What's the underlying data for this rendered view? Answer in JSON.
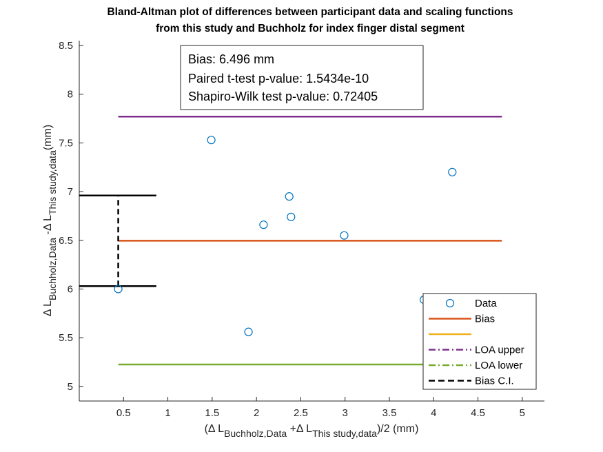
{
  "chart_data": {
    "type": "scatter",
    "title_lines": [
      "Bland-Altman plot of differences between participant data and scaling functions",
      "from this study and Buchholz for index finger distal segment"
    ],
    "xlabel": {
      "open": "(Δ L",
      "sub1": "Buchholz,Data",
      "mid": " +Δ L",
      "sub2": "This study,data",
      "close": ")/2 (mm)"
    },
    "ylabel": {
      "a": "Δ L",
      "sub1": "Buchholz,Data",
      "b": " -Δ L",
      "sub2": "This study,data",
      "c": "(mm)"
    },
    "xlim": [
      0,
      5.25
    ],
    "ylim": [
      4.85,
      8.55
    ],
    "xticks": [
      0.5,
      1,
      1.5,
      2,
      2.5,
      3,
      3.5,
      4,
      4.5,
      5
    ],
    "xtick_labels": [
      "0.5",
      "1",
      "1.5",
      "2",
      "2.5",
      "3",
      "3.5",
      "4",
      "4.5",
      "5"
    ],
    "yticks": [
      5,
      5.5,
      6,
      6.5,
      7,
      7.5,
      8,
      8.5
    ],
    "ytick_labels": [
      "5",
      "5.5",
      "6",
      "6.5",
      "7",
      "7.5",
      "8",
      "8.5"
    ],
    "points": [
      {
        "x": 0.44,
        "y": 6.0
      },
      {
        "x": 1.49,
        "y": 7.53
      },
      {
        "x": 1.91,
        "y": 5.56
      },
      {
        "x": 2.08,
        "y": 6.66
      },
      {
        "x": 2.37,
        "y": 6.95
      },
      {
        "x": 2.39,
        "y": 6.74
      },
      {
        "x": 2.99,
        "y": 6.55
      },
      {
        "x": 3.89,
        "y": 5.89
      },
      {
        "x": 4.21,
        "y": 7.2
      },
      {
        "x": 4.77,
        "y": 5.84
      }
    ],
    "lines": {
      "bias": {
        "y": 6.496,
        "x": [
          0.44,
          4.77
        ],
        "color": "#D95319"
      },
      "loa_upper": {
        "y": 7.77,
        "x": [
          0.44,
          4.77
        ],
        "color": "#7E2F8E"
      },
      "loa_lower": {
        "y": 5.225,
        "x": [
          0.44,
          4.77
        ],
        "color": "#77AC30"
      },
      "bias_ci": {
        "y": [
          6.03,
          6.96
        ],
        "x": 0.44,
        "cap_x": [
          0,
          0.87
        ],
        "color": "#000000"
      }
    },
    "annotation": [
      "Bias: 6.496 mm",
      "Paired t-test p-value: 1.5434e-10",
      "Shapiro-Wilk test p-value: 0.72405"
    ],
    "legend": {
      "placement": "bottom-right",
      "entries": [
        {
          "label": "Data",
          "style": "marker",
          "color": "#0072BD"
        },
        {
          "label": "Bias",
          "style": "solid",
          "color": "#D95319"
        },
        {
          "label": "",
          "style": "solid",
          "color": "#EDB120"
        },
        {
          "label": "LOA upper",
          "style": "dashdot",
          "color": "#7E2F8E"
        },
        {
          "label": "LOA lower",
          "style": "dashdot",
          "color": "#77AC30"
        },
        {
          "label": "Bias C.I.",
          "style": "dashed",
          "color": "#000000"
        }
      ]
    },
    "colors": {
      "data_marker": "#0072BD",
      "axis": "#262626"
    }
  }
}
